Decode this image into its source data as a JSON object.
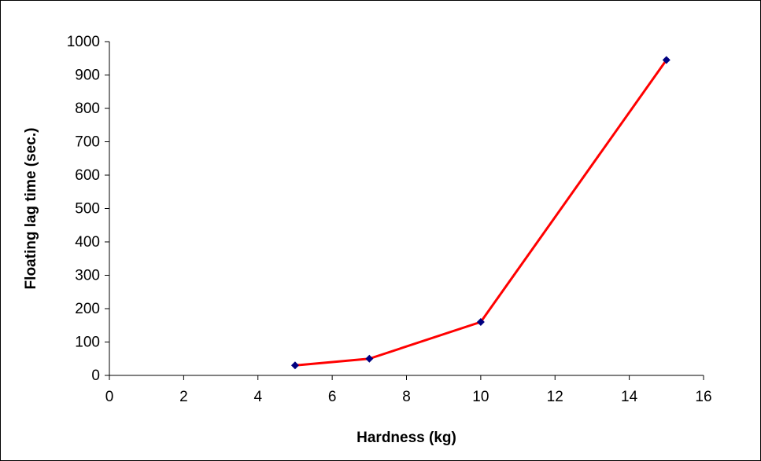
{
  "chart_data": {
    "type": "line",
    "title": "",
    "xlabel": "Hardness (kg)",
    "ylabel": "Floating lag time (sec.)",
    "xlim": [
      0,
      16
    ],
    "ylim": [
      0,
      1000
    ],
    "xticks": [
      0,
      2,
      4,
      6,
      8,
      10,
      12,
      14,
      16
    ],
    "yticks": [
      0,
      100,
      200,
      300,
      400,
      500,
      600,
      700,
      800,
      900,
      1000
    ],
    "grid": false,
    "legend": "none",
    "series": [
      {
        "x": [
          5,
          7,
          10,
          15
        ],
        "y": [
          30,
          50,
          160,
          945
        ],
        "line_color": "#ff0000",
        "marker": "diamond",
        "marker_color": "#000080"
      }
    ]
  }
}
